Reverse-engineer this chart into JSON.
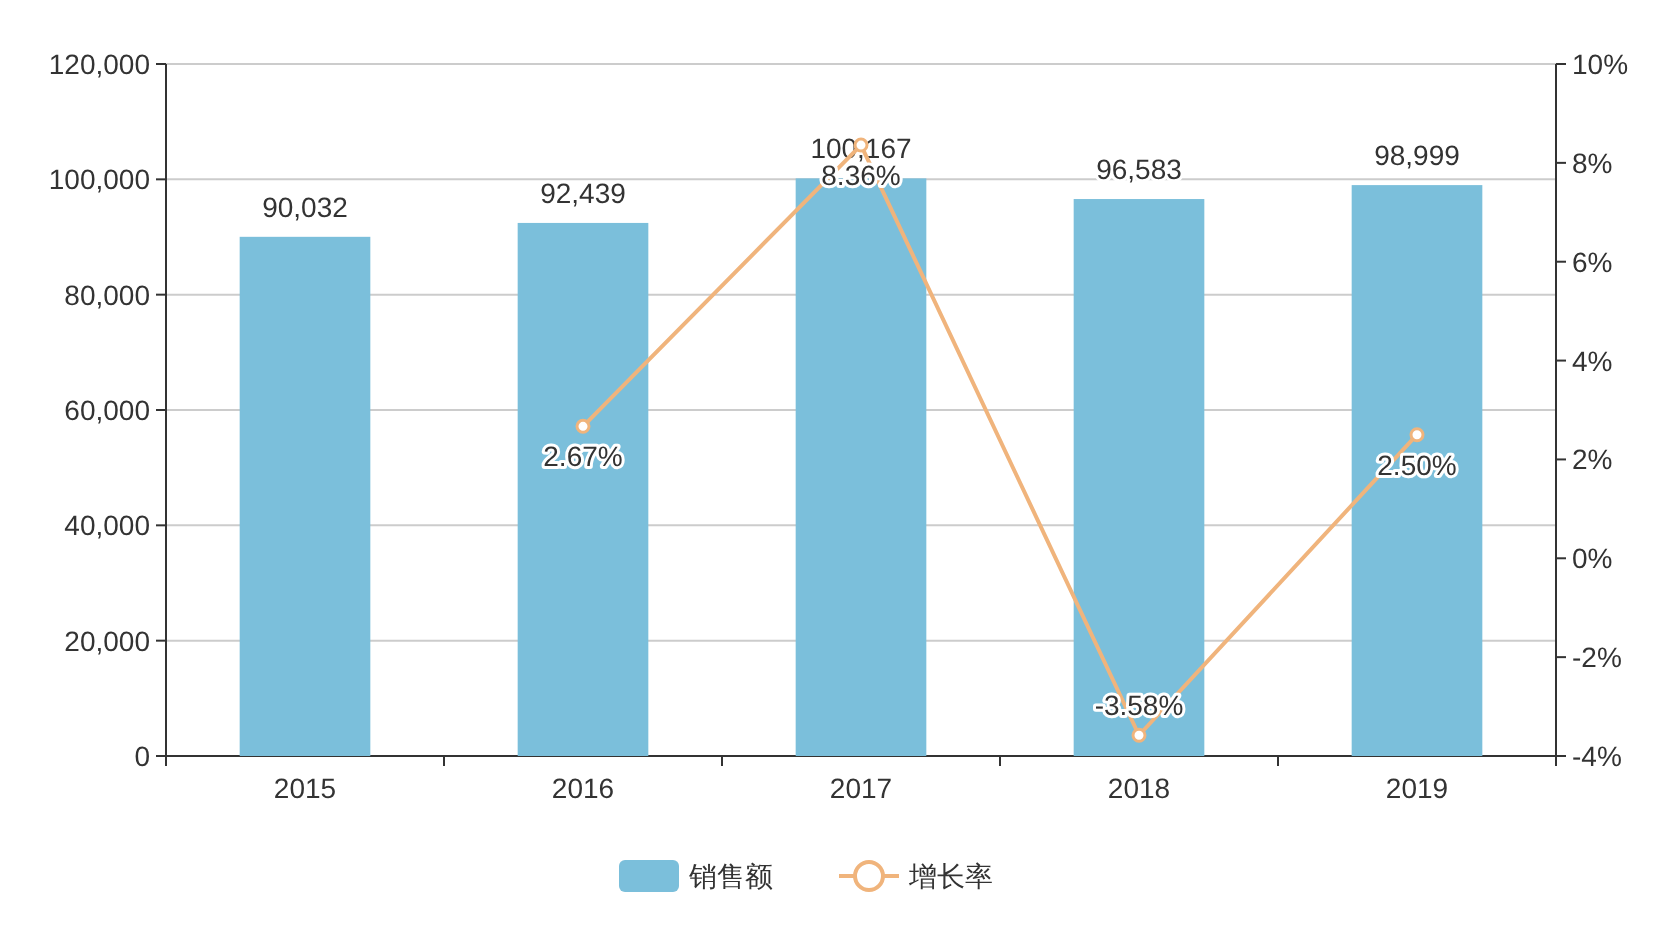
{
  "chart_data": {
    "type": "bar",
    "categories": [
      "2015",
      "2016",
      "2017",
      "2018",
      "2019"
    ],
    "series": [
      {
        "name": "销售额",
        "color": "#7bbfdb",
        "values": [
          90032,
          92439,
          100167,
          96583,
          98999
        ],
        "value_labels": [
          "90,032",
          "92,439",
          "100,167",
          "96,583",
          "98,999"
        ]
      },
      {
        "name": "增长率",
        "type": "line",
        "axis": "y2",
        "color": "#f0b47c",
        "values": [
          null,
          2.67,
          8.36,
          -3.58,
          2.5
        ],
        "value_labels": [
          null,
          "2.67%",
          "8.36%",
          "-3.58%",
          "2.50%"
        ]
      }
    ],
    "ylim": [
      0,
      120000
    ],
    "yticks": [
      0,
      {
        "value": 20000,
        "label": "20,000"
      },
      {
        "value": 40000,
        "label": "40,000"
      },
      {
        "value": 60000,
        "label": "60,000"
      },
      {
        "value": 80000,
        "label": "80,000"
      },
      {
        "value": 100000,
        "label": "100,000"
      },
      {
        "value": 120000,
        "label": "120,000"
      }
    ],
    "y2lim": [
      -4,
      10
    ],
    "y2ticks": [
      {
        "value": -4,
        "label": "-4%"
      },
      {
        "value": -2,
        "label": "-2%"
      },
      {
        "value": 0,
        "label": "0%"
      },
      {
        "value": 2,
        "label": "2%"
      },
      {
        "value": 4,
        "label": "4%"
      },
      {
        "value": 6,
        "label": "6%"
      },
      {
        "value": 8,
        "label": "8%"
      },
      {
        "value": 10,
        "label": "10%"
      }
    ],
    "grid": "y",
    "legend": "bottom",
    "marker": "circle"
  }
}
